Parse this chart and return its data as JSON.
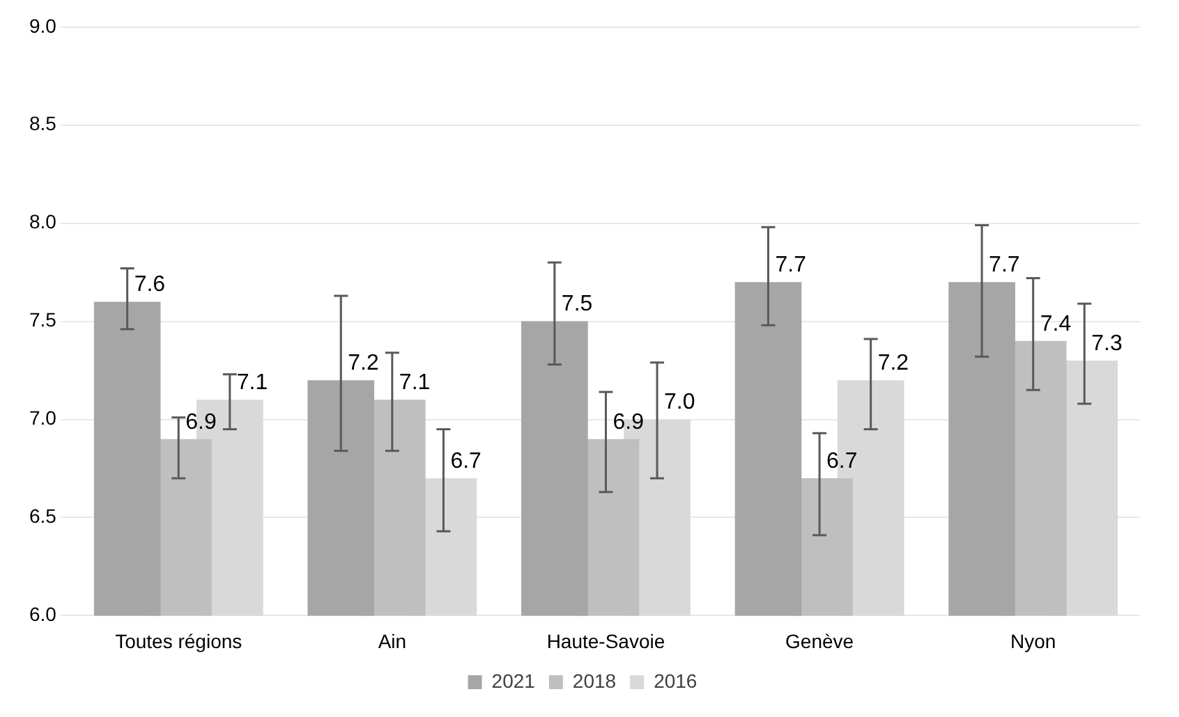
{
  "chart_data": {
    "type": "bar",
    "categories": [
      "Toutes régions",
      "Ain",
      "Haute-Savoie",
      "Genève",
      "Nyon"
    ],
    "series": [
      {
        "name": "2021",
        "color": "#a6a6a6",
        "values": [
          7.6,
          7.2,
          7.5,
          7.7,
          7.7
        ],
        "value_labels": [
          "7.6",
          "7.2",
          "7.5",
          "7.7",
          "7.7"
        ],
        "errors": [
          [
            7.46,
            7.77
          ],
          [
            6.84,
            7.63
          ],
          [
            7.28,
            7.8
          ],
          [
            7.48,
            7.98
          ],
          [
            7.32,
            7.99
          ]
        ]
      },
      {
        "name": "2018",
        "color": "#bfbfbf",
        "values": [
          6.9,
          7.1,
          6.9,
          6.7,
          7.4
        ],
        "value_labels": [
          "6.9",
          "7.1",
          "6.9",
          "6.7",
          "7.4"
        ],
        "errors": [
          [
            6.7,
            7.01
          ],
          [
            6.84,
            7.34
          ],
          [
            6.63,
            7.14
          ],
          [
            6.41,
            6.93
          ],
          [
            7.15,
            7.72
          ]
        ]
      },
      {
        "name": "2016",
        "color": "#d9d9d9",
        "values": [
          7.1,
          6.7,
          7.0,
          7.2,
          7.3
        ],
        "value_labels": [
          "7.1",
          "6.7",
          "7.0",
          "7.2",
          "7.3"
        ],
        "errors": [
          [
            6.95,
            7.23
          ],
          [
            6.43,
            6.95
          ],
          [
            6.7,
            7.29
          ],
          [
            6.95,
            7.41
          ],
          [
            7.08,
            7.59
          ]
        ]
      }
    ],
    "ylim": [
      6,
      9
    ],
    "yticks": [
      {
        "value": 6,
        "label": "6.0"
      },
      {
        "value": 6.5,
        "label": "6.5"
      },
      {
        "value": 7,
        "label": "7.0"
      },
      {
        "value": 7.5,
        "label": "7.5"
      },
      {
        "value": 8,
        "label": "8.0"
      },
      {
        "value": 8.5,
        "label": "8.5"
      },
      {
        "value": 9,
        "label": "9.0"
      }
    ],
    "grid": "y",
    "legend": "bottom"
  }
}
